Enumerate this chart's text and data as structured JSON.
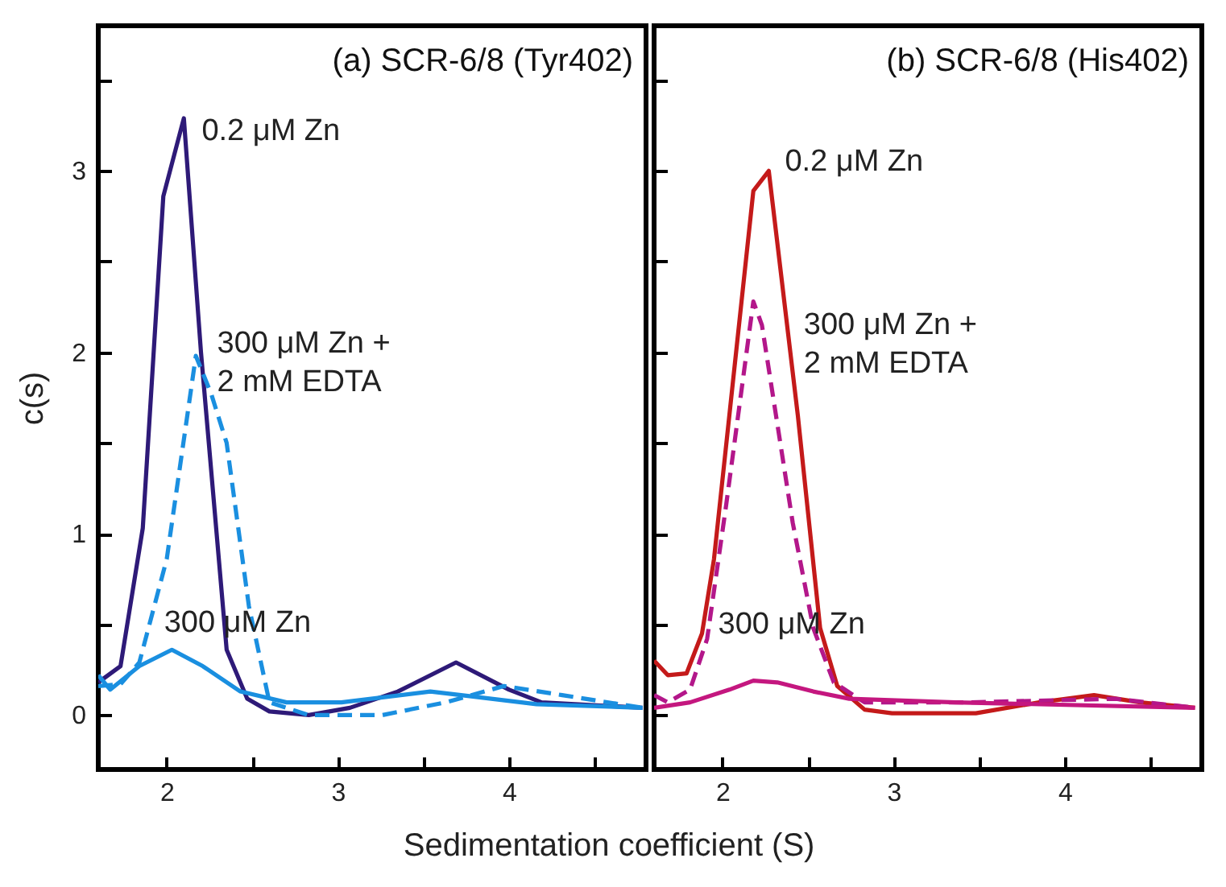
{
  "chart_data": [
    {
      "type": "line",
      "title": "(a) SCR-6/8 (Tyr402)",
      "xlabel": "Sedimentation coefficient (S)",
      "ylabel": "c(s)",
      "xlim": [
        1.6,
        4.8
      ],
      "ylim": [
        -0.3,
        3.8
      ],
      "xticks": [
        2,
        {
          "value": 2.5,
          "label": null
        },
        3,
        {
          "value": 3.5,
          "label": null
        },
        4,
        {
          "value": 4.5,
          "label": null
        }
      ],
      "yticks": [
        0,
        {
          "value": 0.5,
          "label": null
        },
        1,
        {
          "value": 1.5,
          "label": null
        },
        2,
        {
          "value": 2.5,
          "label": null
        },
        3,
        {
          "value": 3.5,
          "label": null
        }
      ],
      "grid": false,
      "series": [
        {
          "color": "#2e1a78",
          "line_style": "solid",
          "x": [
            1.6,
            1.73,
            1.86,
            1.98,
            2.1,
            2.2,
            2.35,
            2.47,
            2.6,
            2.83,
            3.07,
            3.35,
            3.69,
            4.0,
            4.19,
            4.78
          ],
          "values": [
            0.18,
            0.27,
            1.03,
            2.86,
            3.29,
            2.0,
            0.36,
            0.09,
            0.02,
            0.0,
            0.04,
            0.13,
            0.29,
            0.14,
            0.07,
            0.04
          ]
        },
        {
          "color": "#1a8fe0",
          "line_style": "dashed",
          "x": [
            1.6,
            1.73,
            1.84,
            2.0,
            2.17,
            2.26,
            2.35,
            2.48,
            2.6,
            2.83,
            3.26,
            3.63,
            3.97,
            4.31,
            4.78
          ],
          "values": [
            0.16,
            0.17,
            0.29,
            0.86,
            1.98,
            1.77,
            1.5,
            0.6,
            0.07,
            0.0,
            0.0,
            0.07,
            0.16,
            0.11,
            0.04
          ]
        },
        {
          "color": "#1a8fe0",
          "line_style": "solid",
          "x": [
            1.6,
            1.67,
            1.84,
            2.03,
            2.21,
            2.43,
            2.7,
            3.02,
            3.54,
            3.72,
            4.16,
            4.78
          ],
          "values": [
            0.22,
            0.14,
            0.27,
            0.36,
            0.27,
            0.13,
            0.07,
            0.07,
            0.13,
            0.11,
            0.06,
            0.04
          ]
        }
      ],
      "annotations": [
        {
          "text": "0.2 μM Zn",
          "x": 2.11,
          "y": 3.17
        },
        {
          "text": "300 μM Zn +\n2 mM EDTA",
          "x": 2.2,
          "y": 2.0
        },
        {
          "text": "300 μM Zn",
          "x": 1.89,
          "y": 0.46
        }
      ]
    },
    {
      "type": "line",
      "title": "(b) SCR-6/8 (His402)",
      "xlim": [
        1.6,
        4.8
      ],
      "ylim": [
        -0.3,
        3.8
      ],
      "xticks": [
        2,
        {
          "value": 2.5,
          "label": null
        },
        3,
        {
          "value": 3.5,
          "label": null
        },
        4,
        {
          "value": 4.5,
          "label": null
        }
      ],
      "yticks": [
        0,
        {
          "value": 0.5,
          "label": null
        },
        1,
        {
          "value": 1.5,
          "label": null
        },
        2,
        {
          "value": 2.5,
          "label": null
        },
        3,
        {
          "value": 3.5,
          "label": null
        }
      ],
      "tick_labels": "x",
      "grid": false,
      "series": [
        {
          "color": "#c41a1a",
          "line_style": "solid",
          "x": [
            1.6,
            1.68,
            1.79,
            1.88,
            1.95,
            2.18,
            2.27,
            2.44,
            2.57,
            2.67,
            2.83,
            2.99,
            3.48,
            3.85,
            4.17,
            4.44,
            4.76
          ],
          "values": [
            0.3,
            0.22,
            0.23,
            0.45,
            0.86,
            2.89,
            3.0,
            1.65,
            0.48,
            0.16,
            0.03,
            0.01,
            0.01,
            0.07,
            0.11,
            0.07,
            0.04
          ]
        },
        {
          "color": "#b3178a",
          "line_style": "dashed",
          "x": [
            1.6,
            1.68,
            1.81,
            1.91,
            2.02,
            2.18,
            2.23,
            2.41,
            2.53,
            2.65,
            2.83,
            3.45,
            4.29,
            4.76
          ],
          "values": [
            0.11,
            0.07,
            0.14,
            0.42,
            1.15,
            2.28,
            2.15,
            1.06,
            0.48,
            0.18,
            0.07,
            0.07,
            0.09,
            0.04
          ]
        },
        {
          "color": "#c4177f",
          "line_style": "solid",
          "x": [
            1.6,
            1.81,
            2.04,
            2.18,
            2.32,
            2.53,
            2.74,
            3.36,
            4.76
          ],
          "values": [
            0.04,
            0.07,
            0.14,
            0.19,
            0.18,
            0.13,
            0.09,
            0.07,
            0.04
          ]
        }
      ],
      "annotations": [
        {
          "text": "0.2 μM Zn",
          "x": 2.27,
          "y": 3.0
        },
        {
          "text": "300 μM Zn +\n2 mM EDTA",
          "x": 2.38,
          "y": 2.1
        },
        {
          "text": "300 μM Zn",
          "x": 1.88,
          "y": 0.45
        }
      ]
    }
  ]
}
